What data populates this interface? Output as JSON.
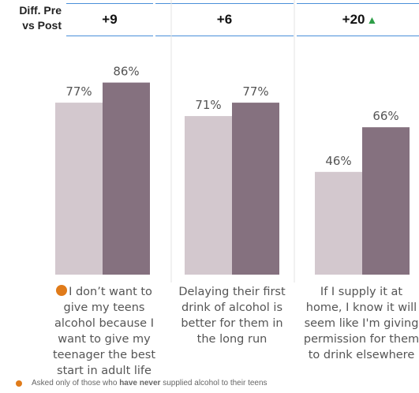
{
  "header": {
    "label_line1": "Diff. Pre",
    "label_line2": "vs Post",
    "diffs": [
      {
        "value": "+9",
        "up_icon": false
      },
      {
        "value": "+6",
        "up_icon": false
      },
      {
        "value": "+20",
        "up_icon": true
      }
    ],
    "up_icon_name": "triangle-up-icon",
    "accent_line_color": "#4a90d9",
    "up_color": "#2e9e48"
  },
  "chart_data": {
    "type": "bar",
    "categories": [
      "I don't want to give my teens alcohol because I want to give my teenager the best start in adult life",
      "Delaying their first drink of alcohol is better for them in the long run",
      "If I supply it at home, I know it will seem like I'm giving permission for them to drink elsewhere"
    ],
    "category_lines": [
      [
        "I don’t want to",
        "give my teens",
        "alcohol because I",
        "want to give my",
        "teenager the best",
        "start in adult life"
      ],
      [
        "Delaying their first",
        "drink of alcohol is",
        "better for them in",
        "the long run"
      ],
      [
        "If I supply it at",
        "home, I know it will",
        "seem like I'm giving",
        "permission for them",
        "to drink elsewhere"
      ]
    ],
    "series": [
      {
        "values": [
          77,
          71,
          46
        ],
        "color": "#d3c8ce"
      },
      {
        "values": [
          86,
          77,
          66
        ],
        "color": "#85717f"
      }
    ],
    "value_labels": [
      [
        "77%",
        "71%",
        "46%"
      ],
      [
        "86%",
        "77%",
        "66%"
      ]
    ],
    "ylim": [
      0,
      100
    ],
    "grid": false,
    "marker_color": "#e07b1a"
  },
  "footnote": {
    "prefix": "Asked only of those who ",
    "emphasis": "have never",
    "suffix": " supplied alcohol to their teens",
    "icon_name": "orange-dot-icon"
  }
}
